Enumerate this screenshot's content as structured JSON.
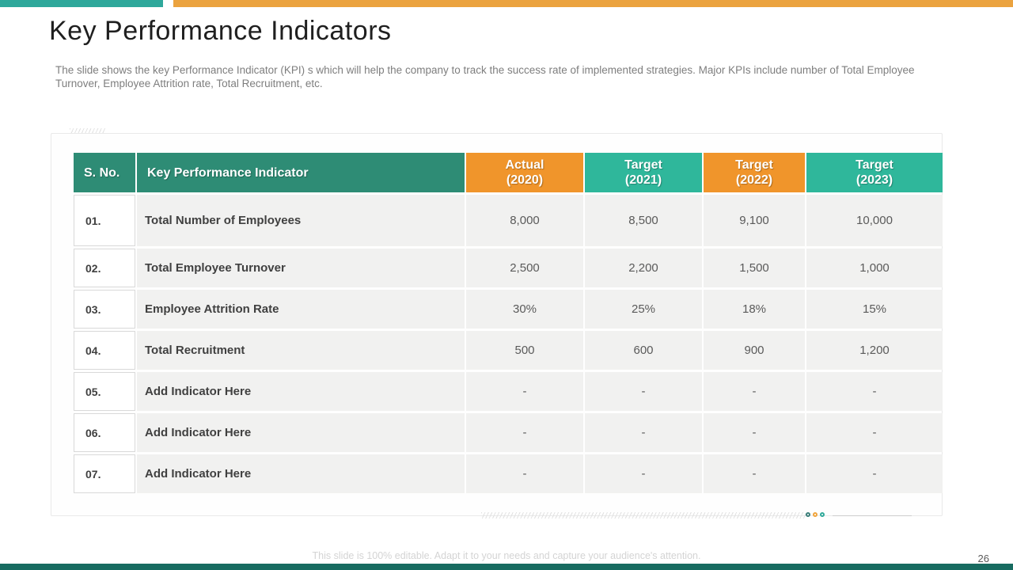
{
  "slide": {
    "title": "Key Performance Indicators",
    "subtitle": "The slide shows the key Performance Indicator (KPI) s which will help the company to track the success rate of implemented strategies. Major  KPIs include number of Total Employee Turnover,  Employee Attrition  rate, Total Recruitment, etc.",
    "footer_note": "This slide is 100% editable. Adapt it to your needs and capture your audience's attention.",
    "page_number": "26"
  },
  "colors": {
    "top_bar_teal": "#2FA89B",
    "top_bar_orange": "#EBA33F",
    "header_dark_teal": "#2E8C75",
    "header_orange": "#F0952B",
    "header_teal": "#2FB79B",
    "bottom_bar_teal": "#176B60",
    "row_fill": "#F1F1F0"
  },
  "decor": {
    "dot_colors": [
      "#3A7D78",
      "#F0A43C",
      "#2FA99A"
    ]
  },
  "table": {
    "columns": [
      {
        "label": "S. No.",
        "sublabel": "",
        "variant": "dark"
      },
      {
        "label": "Key Performance Indicator",
        "sublabel": "",
        "variant": "dark"
      },
      {
        "label": "Actual",
        "sublabel": "(2020)",
        "variant": "orange"
      },
      {
        "label": "Target",
        "sublabel": "(2021)",
        "variant": "teal"
      },
      {
        "label": "Target",
        "sublabel": "(2022)",
        "variant": "orange"
      },
      {
        "label": "Target",
        "sublabel": "(2023)",
        "variant": "teal"
      }
    ],
    "rows": [
      {
        "sno": "01.",
        "kpi": "Total Number of Employees",
        "values": [
          "8,000",
          "8,500",
          "9,100",
          "10,000"
        ]
      },
      {
        "sno": "02.",
        "kpi": "Total Employee Turnover",
        "values": [
          "2,500",
          "2,200",
          "1,500",
          "1,000"
        ]
      },
      {
        "sno": "03.",
        "kpi": "Employee Attrition  Rate",
        "values": [
          "30%",
          "25%",
          "18%",
          "15%"
        ]
      },
      {
        "sno": "04.",
        "kpi": "Total Recruitment",
        "values": [
          "500",
          "600",
          "900",
          "1,200"
        ]
      },
      {
        "sno": "05.",
        "kpi": "Add Indicator Here",
        "values": [
          "-",
          "-",
          "-",
          "-"
        ]
      },
      {
        "sno": "06.",
        "kpi": "Add Indicator Here",
        "values": [
          "-",
          "-",
          "-",
          "-"
        ]
      },
      {
        "sno": "07.",
        "kpi": "Add Indicator Here",
        "values": [
          "-",
          "-",
          "-",
          "-"
        ]
      }
    ]
  }
}
